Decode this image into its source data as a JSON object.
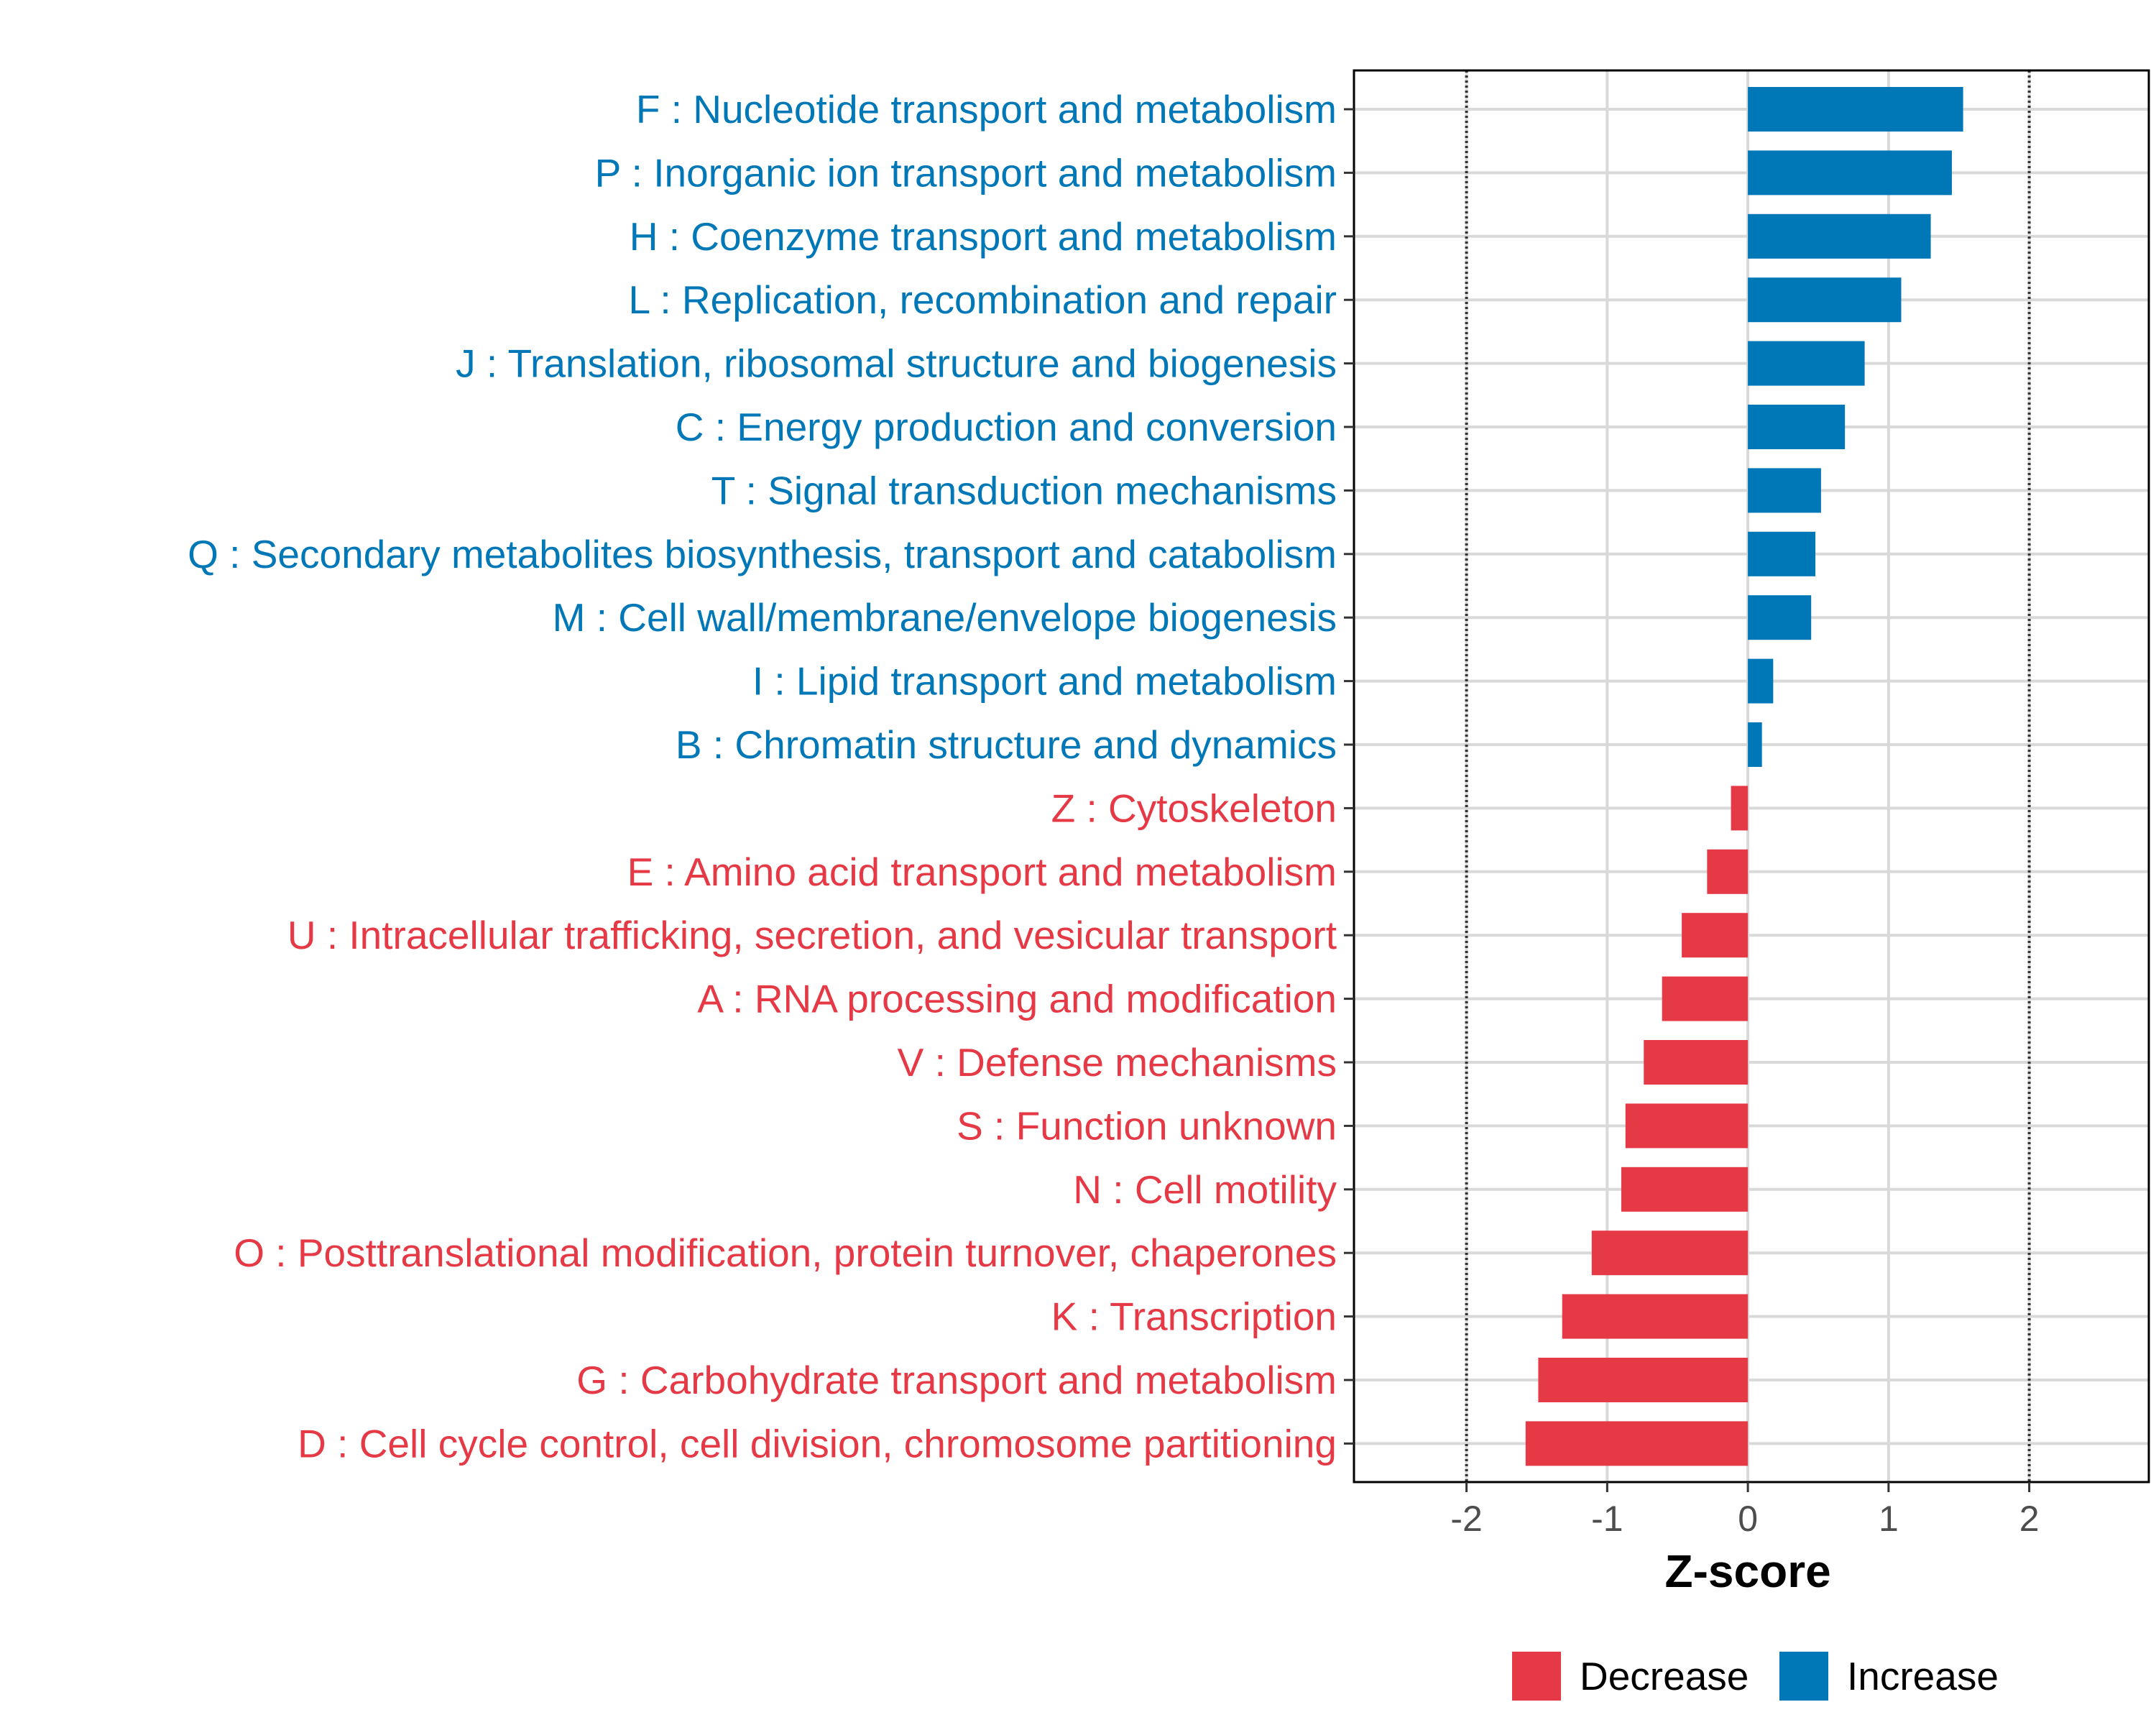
{
  "chart_data": {
    "type": "bar",
    "orientation": "horizontal",
    "xlabel": "Z-score",
    "xlim": [
      -2.8,
      2.85
    ],
    "xticks": [
      -2,
      -1,
      0,
      1,
      2
    ],
    "xtick_labels": [
      "-2",
      "-1",
      "0",
      "1",
      "2"
    ],
    "reference_lines": [
      -2,
      2
    ],
    "grid": true,
    "legend_position": "bottom",
    "categories": [
      "F : Nucleotide transport and metabolism",
      "P : Inorganic ion transport and metabolism",
      "H : Coenzyme transport and metabolism",
      "L : Replication, recombination and repair",
      "J : Translation, ribosomal structure and biogenesis",
      "C : Energy production and conversion",
      "T : Signal transduction mechanisms",
      "Q : Secondary metabolites biosynthesis, transport and catabolism",
      "M : Cell wall/membrane/envelope biogenesis",
      "I : Lipid transport and metabolism",
      "B : Chromatin structure and dynamics",
      "Z : Cytoskeleton",
      "E : Amino acid transport and metabolism",
      "U : Intracellular trafficking, secretion, and vesicular transport",
      "A : RNA processing and modification",
      "V : Defense mechanisms",
      "S : Function unknown",
      "N : Cell motility",
      "O : Posttranslational modification, protein turnover, chaperones",
      "K : Transcription",
      "G : Carbohydrate transport and metabolism",
      "D : Cell cycle control, cell division, chromosome partitioning"
    ],
    "values": [
      1.53,
      1.45,
      1.3,
      1.09,
      0.83,
      0.69,
      0.52,
      0.48,
      0.45,
      0.18,
      0.1,
      -0.12,
      -0.29,
      -0.47,
      -0.61,
      -0.74,
      -0.87,
      -0.9,
      -1.11,
      -1.32,
      -1.49,
      -1.58
    ],
    "groups": [
      "Increase",
      "Increase",
      "Increase",
      "Increase",
      "Increase",
      "Increase",
      "Increase",
      "Increase",
      "Increase",
      "Increase",
      "Increase",
      "Decrease",
      "Decrease",
      "Decrease",
      "Decrease",
      "Decrease",
      "Decrease",
      "Decrease",
      "Decrease",
      "Decrease",
      "Decrease",
      "Decrease"
    ],
    "legend": [
      {
        "name": "Decrease",
        "color": "#e63946"
      },
      {
        "name": "Increase",
        "color": "#0077b6"
      }
    ]
  }
}
